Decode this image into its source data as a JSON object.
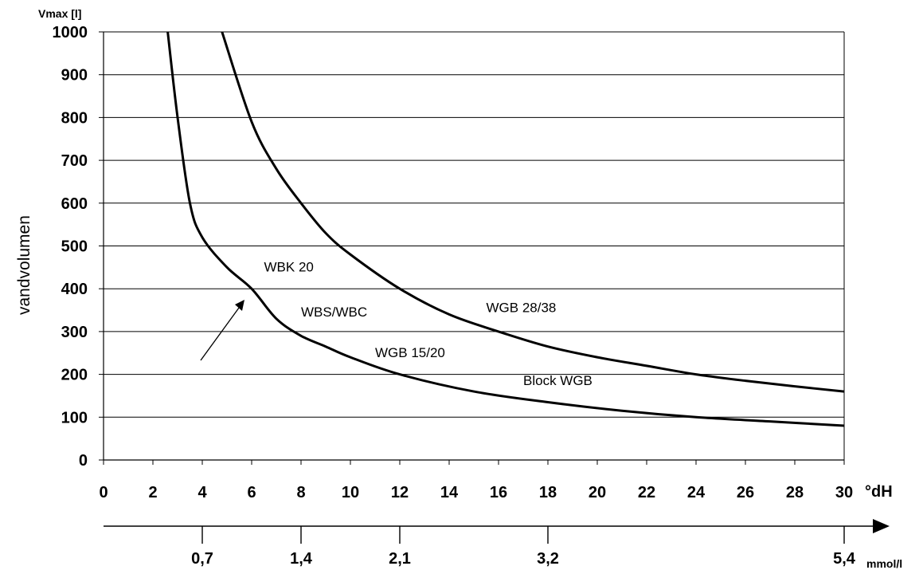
{
  "chart_data": {
    "type": "line",
    "ylabel_top": "Vmax [l]",
    "ylabel_side": "vandvolumen",
    "xunit": "°dH",
    "x2unit": "mmol/l",
    "xlim": [
      0,
      30
    ],
    "ylim": [
      0,
      1000
    ],
    "yticks": [
      "0",
      "100",
      "200",
      "300",
      "400",
      "500",
      "600",
      "700",
      "800",
      "900",
      "1000"
    ],
    "xticks": [
      "0",
      "2",
      "4",
      "6",
      "8",
      "10",
      "12",
      "14",
      "16",
      "18",
      "20",
      "22",
      "24",
      "26",
      "28",
      "30"
    ],
    "x2ticks": [
      {
        "label": "0,7",
        "dh": 4
      },
      {
        "label": "1,4",
        "dh": 8
      },
      {
        "label": "2,1",
        "dh": 12
      },
      {
        "label": "3,2",
        "dh": 18
      },
      {
        "label": "5,4",
        "dh": 30
      }
    ],
    "grid": "horizontal",
    "series": [
      {
        "values": [
          [
            2.6,
            1000
          ],
          [
            3,
            800
          ],
          [
            3.5,
            600
          ],
          [
            4,
            520
          ],
          [
            5,
            450
          ],
          [
            6,
            400
          ],
          [
            7,
            330
          ],
          [
            8,
            290
          ],
          [
            9,
            265
          ],
          [
            10,
            240
          ],
          [
            12,
            200
          ],
          [
            15,
            160
          ],
          [
            18,
            135
          ],
          [
            21,
            115
          ],
          [
            24,
            100
          ],
          [
            27,
            90
          ],
          [
            30,
            80
          ]
        ]
      },
      {
        "values": [
          [
            4.8,
            1000
          ],
          [
            6,
            790
          ],
          [
            7,
            680
          ],
          [
            8,
            600
          ],
          [
            9,
            530
          ],
          [
            10,
            480
          ],
          [
            12,
            400
          ],
          [
            14,
            340
          ],
          [
            16,
            300
          ],
          [
            18,
            265
          ],
          [
            20,
            240
          ],
          [
            22,
            220
          ],
          [
            24,
            200
          ],
          [
            26,
            185
          ],
          [
            28,
            172
          ],
          [
            30,
            160
          ]
        ]
      }
    ],
    "annotations": [
      {
        "text": "WBK 20",
        "x": 6.5,
        "y": 440
      },
      {
        "text": "WBS/WBC",
        "x": 8,
        "y": 335
      },
      {
        "text": "WGB 28/38",
        "x": 15.5,
        "y": 345
      },
      {
        "text": "WGB 15/20",
        "x": 11,
        "y": 240
      },
      {
        "text": "Block WGB",
        "x": 17,
        "y": 175
      }
    ]
  }
}
